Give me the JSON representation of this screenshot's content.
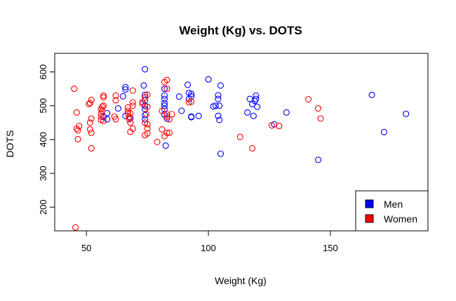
{
  "chart_data": {
    "type": "scatter",
    "title": "Weight (Kg) vs. DOTS",
    "xlabel": "Weight (Kg)",
    "ylabel": "DOTS",
    "xlim": [
      37,
      190
    ],
    "ylim": [
      130,
      655
    ],
    "xticks": [
      50,
      100,
      150
    ],
    "yticks": [
      200,
      300,
      400,
      500,
      600
    ],
    "grid": false,
    "legend_position": "bottom-right",
    "marker": "open-circle",
    "series": [
      {
        "name": "Men",
        "color": "#0000ff",
        "points": [
          [
            57,
            467
          ],
          [
            58.5,
            460
          ],
          [
            58.5,
            478
          ],
          [
            63,
            492
          ],
          [
            66,
            548
          ],
          [
            66,
            555
          ],
          [
            65,
            528
          ],
          [
            66,
            470
          ],
          [
            68,
            463
          ],
          [
            74,
            608
          ],
          [
            73.5,
            560
          ],
          [
            74,
            532
          ],
          [
            74,
            516
          ],
          [
            74,
            500
          ],
          [
            74,
            490
          ],
          [
            74,
            472
          ],
          [
            74,
            460
          ],
          [
            82,
            550
          ],
          [
            82,
            530
          ],
          [
            82,
            520
          ],
          [
            82,
            508
          ],
          [
            82,
            500
          ],
          [
            82,
            490
          ],
          [
            82,
            474
          ],
          [
            83,
            462
          ],
          [
            82.5,
            382
          ],
          [
            88,
            527
          ],
          [
            89,
            485
          ],
          [
            91.5,
            562
          ],
          [
            92,
            538
          ],
          [
            93,
            535
          ],
          [
            93,
            528
          ],
          [
            92,
            520
          ],
          [
            93,
            468
          ],
          [
            93,
            466
          ],
          [
            96,
            470
          ],
          [
            100,
            578
          ],
          [
            102,
            498
          ],
          [
            103,
            500
          ],
          [
            104,
            531
          ],
          [
            104,
            520
          ],
          [
            105,
            560
          ],
          [
            104.5,
            500
          ],
          [
            104,
            470
          ],
          [
            104.5,
            458
          ],
          [
            105,
            358
          ],
          [
            116,
            480
          ],
          [
            117,
            520
          ],
          [
            118,
            505
          ],
          [
            118.5,
            470
          ],
          [
            119,
            514
          ],
          [
            119.5,
            520
          ],
          [
            119.5,
            530
          ],
          [
            120,
            497
          ],
          [
            127,
            445
          ],
          [
            132,
            480
          ],
          [
            145,
            340
          ],
          [
            167,
            532
          ],
          [
            172,
            422
          ],
          [
            181,
            476
          ]
        ]
      },
      {
        "name": "Women",
        "color": "#ff0000",
        "points": [
          [
            45,
            550
          ],
          [
            45.5,
            140
          ],
          [
            46,
            480
          ],
          [
            46,
            432
          ],
          [
            46.5,
            427
          ],
          [
            47,
            440
          ],
          [
            46.5,
            401
          ],
          [
            51,
            505
          ],
          [
            52,
            517
          ],
          [
            51.5,
            508
          ],
          [
            52,
            462
          ],
          [
            51.5,
            450
          ],
          [
            51.5,
            430
          ],
          [
            52,
            420
          ],
          [
            52,
            374
          ],
          [
            56,
            490
          ],
          [
            56.5,
            485
          ],
          [
            56,
            477
          ],
          [
            56,
            468
          ],
          [
            56,
            458
          ],
          [
            57,
            530
          ],
          [
            57,
            525
          ],
          [
            57,
            500
          ],
          [
            56.5,
            497
          ],
          [
            57,
            455
          ],
          [
            62,
            530
          ],
          [
            62,
            516
          ],
          [
            61.5,
            468
          ],
          [
            62,
            460
          ],
          [
            67,
            495
          ],
          [
            67,
            485
          ],
          [
            67,
            477
          ],
          [
            67.5,
            467
          ],
          [
            68,
            478
          ],
          [
            67.5,
            460
          ],
          [
            68,
            450
          ],
          [
            68,
            423
          ],
          [
            69,
            510
          ],
          [
            69,
            500
          ],
          [
            69,
            545
          ],
          [
            69,
            432
          ],
          [
            73,
            511
          ],
          [
            73,
            506
          ],
          [
            74,
            525
          ],
          [
            75,
            533
          ],
          [
            75,
            497
          ],
          [
            74.5,
            476
          ],
          [
            74,
            450
          ],
          [
            75,
            445
          ],
          [
            75,
            433
          ],
          [
            74,
            413
          ],
          [
            75,
            418
          ],
          [
            79,
            393
          ],
          [
            81,
            485
          ],
          [
            81,
            430
          ],
          [
            82,
            570
          ],
          [
            83,
            576
          ],
          [
            83,
            550
          ],
          [
            83,
            475
          ],
          [
            83,
            468
          ],
          [
            84,
            460
          ],
          [
            83,
            420
          ],
          [
            82,
            410
          ],
          [
            84,
            420
          ],
          [
            85,
            475
          ],
          [
            92,
            510
          ],
          [
            93,
            512
          ],
          [
            113,
            408
          ],
          [
            118,
            374
          ],
          [
            126,
            442
          ],
          [
            129,
            440
          ],
          [
            141,
            519
          ],
          [
            145,
            492
          ],
          [
            146,
            462
          ]
        ]
      }
    ]
  },
  "legend": {
    "items": [
      {
        "label": "Men",
        "color": "#0000ff"
      },
      {
        "label": "Women",
        "color": "#ff0000"
      }
    ]
  }
}
